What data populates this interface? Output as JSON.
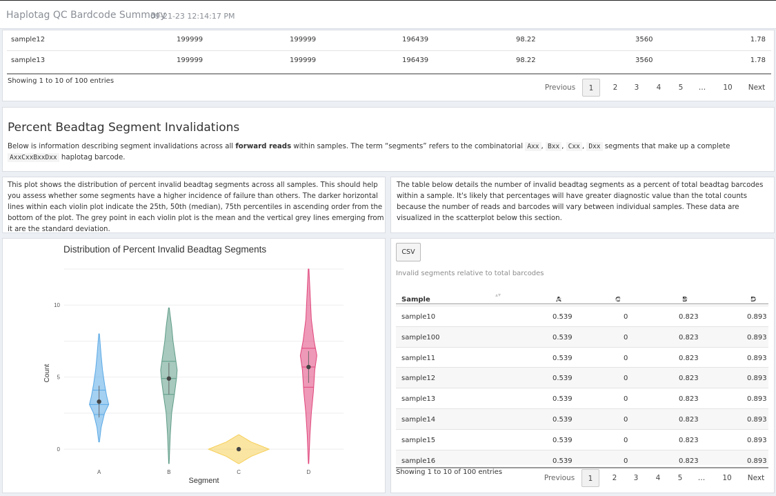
{
  "header": {
    "title": "Haplotag QC Bardcode Summary",
    "timestamp": "09-21-23 12:14:17 PM"
  },
  "summary_table": {
    "rows": [
      [
        "sample12",
        "199999",
        "199999",
        "196439",
        "98.22",
        "3560",
        "1.78"
      ],
      [
        "sample13",
        "199999",
        "199999",
        "196439",
        "98.22",
        "3560",
        "1.78"
      ]
    ],
    "showing": "Showing 1 to 10 of 100 entries",
    "pager": {
      "prev": "Previous",
      "pages": [
        "1",
        "2",
        "3",
        "4",
        "5",
        "…",
        "10"
      ],
      "next": "Next"
    }
  },
  "section": {
    "title": "Percent Beadtag Segment Invalidations",
    "desc_pre": "Below is information describing segment invalidations across all ",
    "desc_bold": "forward reads",
    "desc_mid": " within samples. The term “segments” refers to the combinatorial ",
    "codes": [
      "Axx",
      "Bxx",
      "Cxx",
      "Dxx"
    ],
    "sep": ",",
    "desc_mid2": " segments that make up a complete ",
    "code_full": "AxxCxxBxxDxx",
    "desc_post": " haplotag barcode."
  },
  "left_note": "This plot shows the distribution of percent invalid beadtag segments across all samples. This should help you assess whether some segments have a higher incidence of failure than others. The darker horizontal lines within each violin plot indicate the 25th, 50th (median), 75th percentiles in ascending order from the bottom of the plot. The grey point in each violin plot is the mean and the vertical grey lines emerging from it are the standard deviation.",
  "right_note": "The table below details the number of invalid beadtag segments as a percent of total beadtag barcodes within a sample. It's likely that percentages will have greater diagnostic value than the total counts because the number of reads and barcodes will vary between individual samples. These data are visualized in the scatterplot below this section.",
  "chart_data": {
    "type": "violin",
    "title": "Distribution of Percent Invalid Beadtag Segments",
    "xlabel": "Segment",
    "ylabel": "Count",
    "ylim": [
      -1,
      12.5
    ],
    "yticks": [
      0,
      5,
      10
    ],
    "categories": [
      "A",
      "B",
      "C",
      "D"
    ],
    "colors": [
      "#5aa9e6",
      "#5f9c88",
      "#f6cf57",
      "#e0457b"
    ],
    "series": [
      {
        "category": "A",
        "min": 0.5,
        "max": 8,
        "q1": 2.4,
        "median": 3.1,
        "q3": 4.1,
        "mean": 3.3
      },
      {
        "category": "B",
        "min": -1,
        "max": 9.8,
        "q1": 3.8,
        "median": 4.9,
        "q3": 6.1,
        "mean": 4.9
      },
      {
        "category": "C",
        "min": -1,
        "max": 1,
        "q1": 0,
        "median": 0,
        "q3": 0,
        "mean": 0
      },
      {
        "category": "D",
        "min": -1,
        "max": 12.5,
        "q1": 4.3,
        "median": 5.7,
        "q3": 7,
        "mean": 5.7
      }
    ]
  },
  "table": {
    "csv_label": "CSV",
    "caption": "Invalid segments relative to total barcodes",
    "columns": [
      "Sample",
      "A",
      "C",
      "B",
      "D"
    ],
    "rows": [
      [
        "sample10",
        "0.539",
        "0",
        "0.823",
        "0.893"
      ],
      [
        "sample100",
        "0.539",
        "0",
        "0.823",
        "0.893"
      ],
      [
        "sample11",
        "0.539",
        "0",
        "0.823",
        "0.893"
      ],
      [
        "sample12",
        "0.539",
        "0",
        "0.823",
        "0.893"
      ],
      [
        "sample13",
        "0.539",
        "0",
        "0.823",
        "0.893"
      ],
      [
        "sample14",
        "0.539",
        "0",
        "0.823",
        "0.893"
      ],
      [
        "sample15",
        "0.539",
        "0",
        "0.823",
        "0.893"
      ],
      [
        "sample16",
        "0.539",
        "0",
        "0.823",
        "0.893"
      ]
    ],
    "showing": "Showing 1 to 10 of 100 entries",
    "pager": {
      "prev": "Previous",
      "pages": [
        "1",
        "2",
        "3",
        "4",
        "5",
        "…",
        "10"
      ],
      "next": "Next"
    }
  }
}
